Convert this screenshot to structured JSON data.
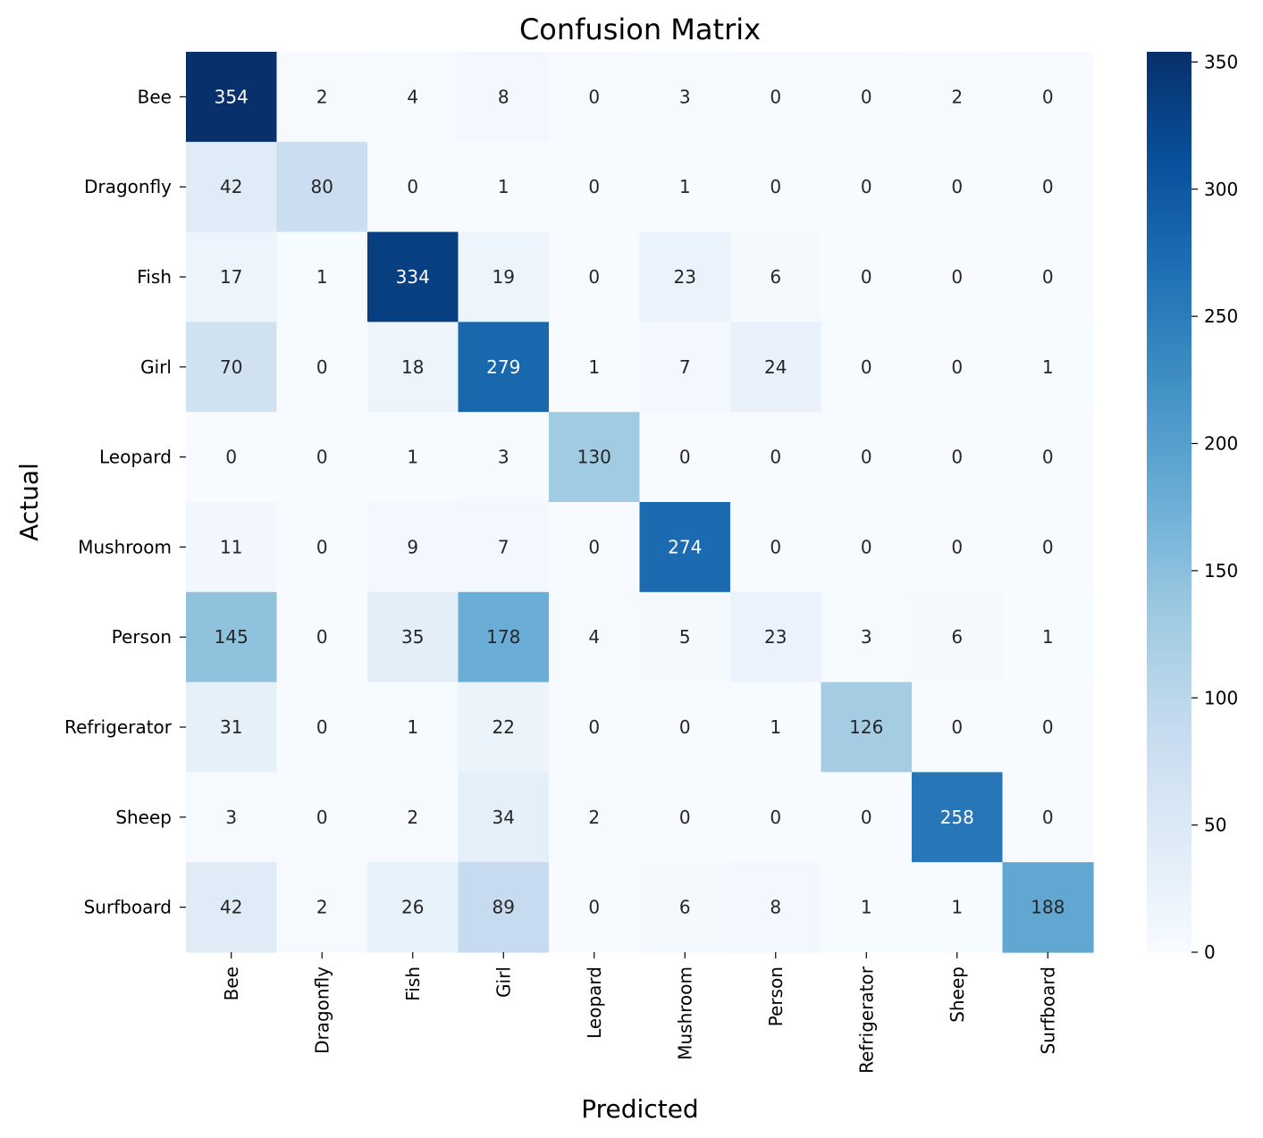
{
  "chart_data": {
    "type": "heatmap",
    "title": "Confusion Matrix",
    "xlabel": "Predicted",
    "ylabel": "Actual",
    "x_categories": [
      "Bee",
      "Dragonfly",
      "Fish",
      "Girl",
      "Leopard",
      "Mushroom",
      "Person",
      "Refrigerator",
      "Sheep",
      "Surfboard"
    ],
    "y_categories": [
      "Bee",
      "Dragonfly",
      "Fish",
      "Girl",
      "Leopard",
      "Mushroom",
      "Person",
      "Refrigerator",
      "Sheep",
      "Surfboard"
    ],
    "values": [
      [
        354,
        2,
        4,
        8,
        0,
        3,
        0,
        0,
        2,
        0
      ],
      [
        42,
        80,
        0,
        1,
        0,
        1,
        0,
        0,
        0,
        0
      ],
      [
        17,
        1,
        334,
        19,
        0,
        23,
        6,
        0,
        0,
        0
      ],
      [
        70,
        0,
        18,
        279,
        1,
        7,
        24,
        0,
        0,
        1
      ],
      [
        0,
        0,
        1,
        3,
        130,
        0,
        0,
        0,
        0,
        0
      ],
      [
        11,
        0,
        9,
        7,
        0,
        274,
        0,
        0,
        0,
        0
      ],
      [
        145,
        0,
        35,
        178,
        4,
        5,
        23,
        3,
        6,
        1
      ],
      [
        31,
        0,
        1,
        22,
        0,
        0,
        1,
        126,
        0,
        0
      ],
      [
        3,
        0,
        2,
        34,
        2,
        0,
        0,
        0,
        258,
        0
      ],
      [
        42,
        2,
        26,
        89,
        0,
        6,
        8,
        1,
        1,
        188
      ]
    ],
    "colorbar": {
      "colormap": "Blues",
      "range": [
        0,
        354
      ],
      "ticks": [
        0,
        50,
        100,
        150,
        200,
        250,
        300,
        350
      ]
    },
    "colors": {
      "low": "#f7fbff",
      "high": "#08306b",
      "text_dark": "#262626",
      "text_light": "#ffffff"
    }
  }
}
